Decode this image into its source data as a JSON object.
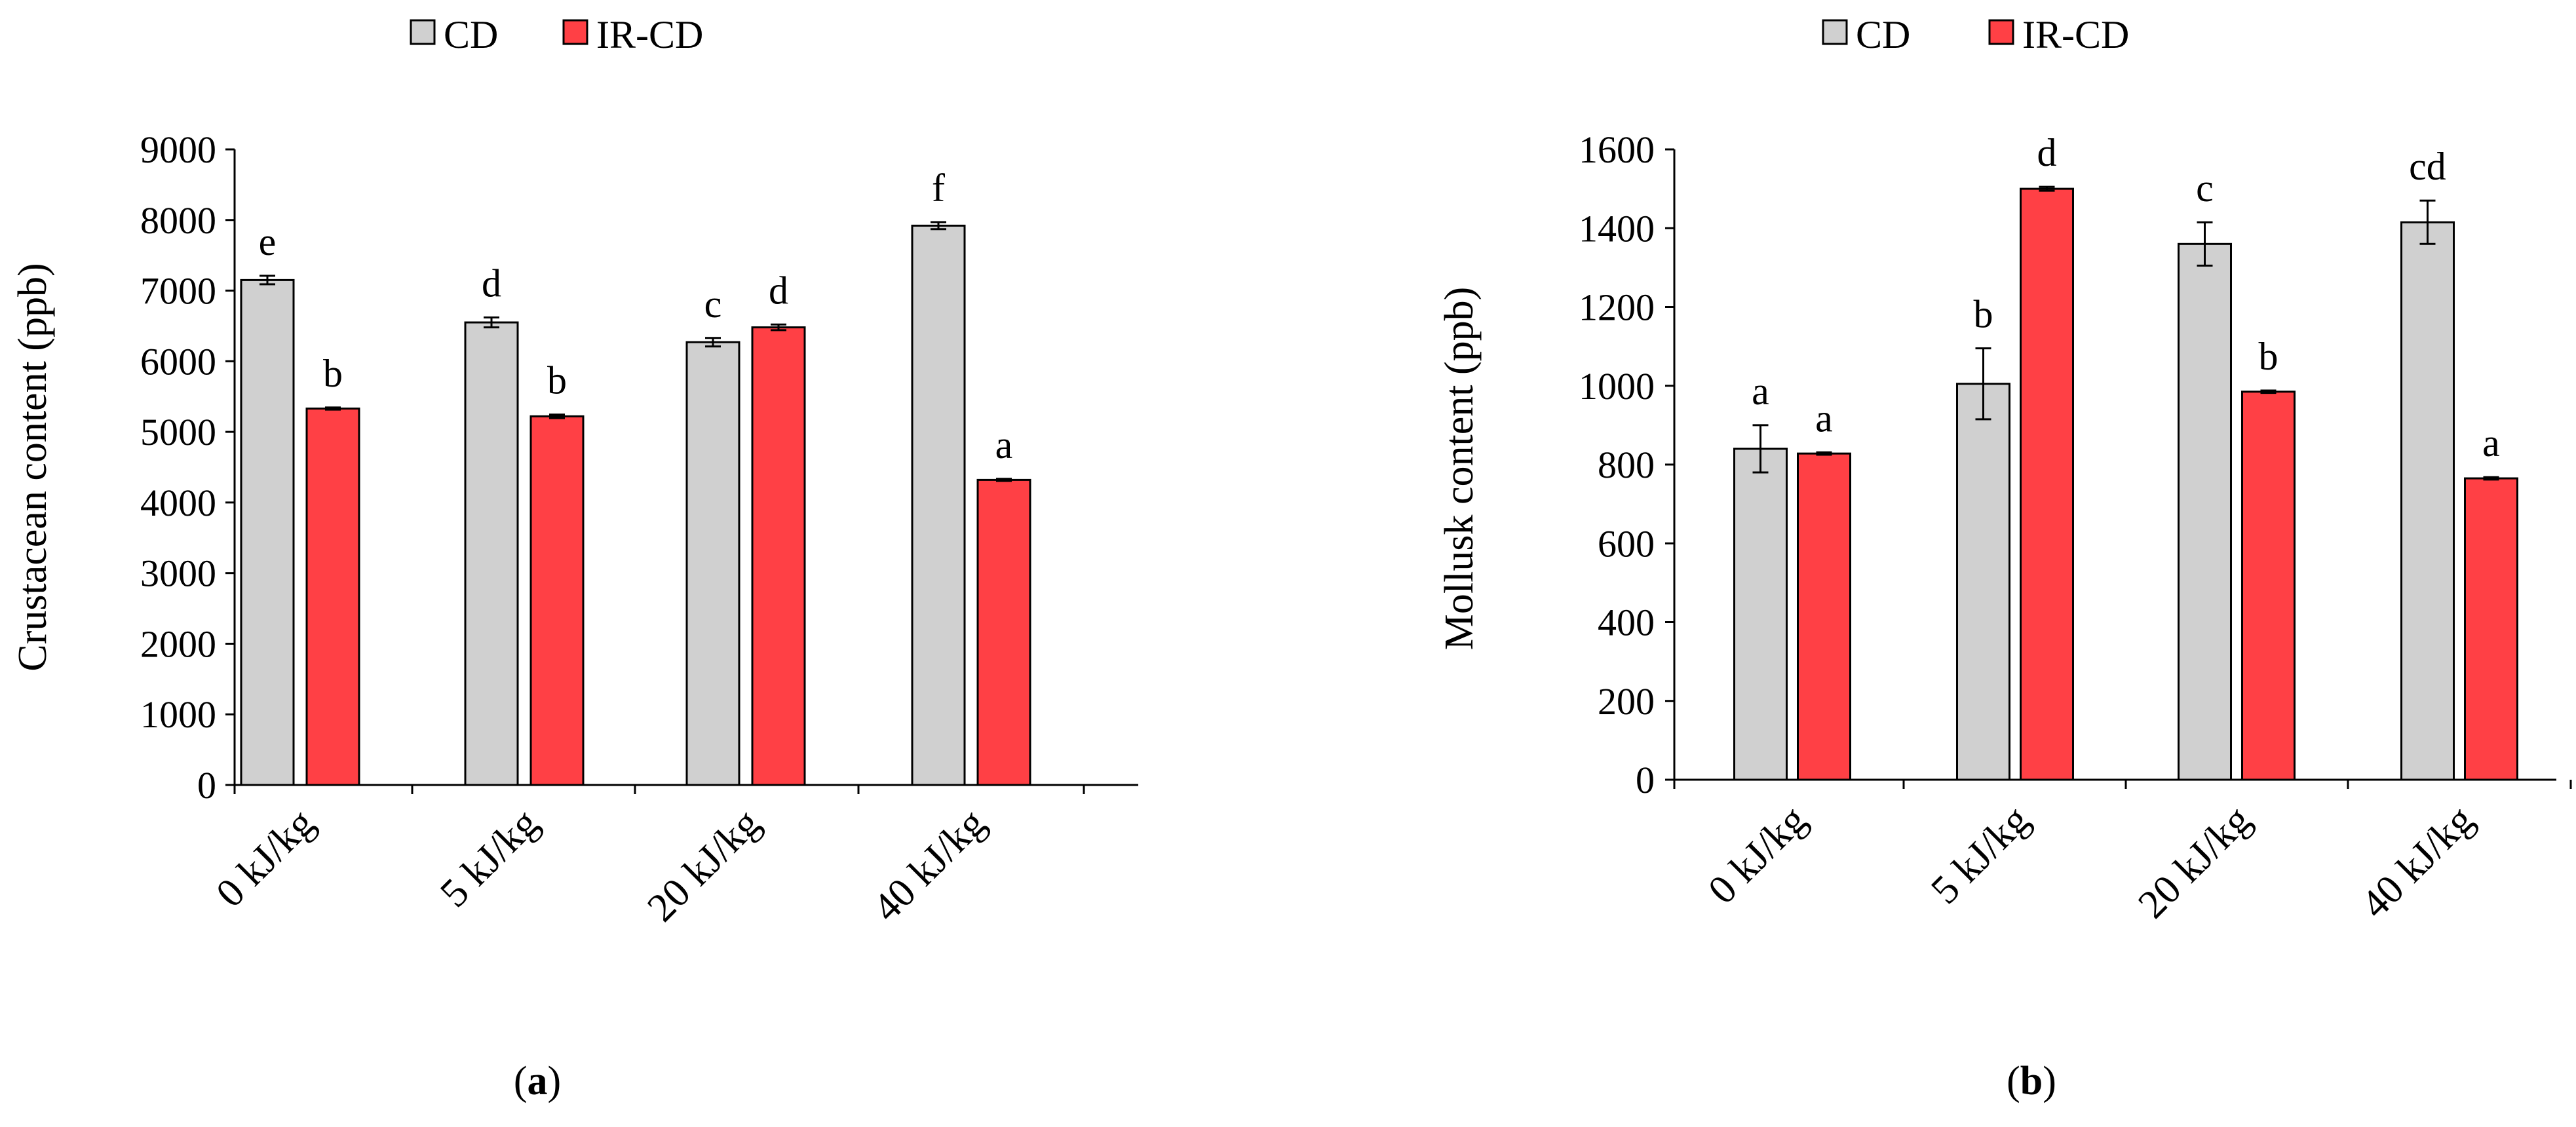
{
  "chart_data": [
    {
      "type": "bar",
      "panel_label": "a",
      "ylabel": "Crustacean content (ppb)",
      "categories": [
        "0 kJ/kg",
        "5 kJ/kg",
        "20 kJ/kg",
        "40 kJ/kg"
      ],
      "ylim": [
        0,
        9000
      ],
      "ytick_step": 1000,
      "yticks": [
        "0",
        "1000",
        "2000",
        "3000",
        "4000",
        "5000",
        "6000",
        "7000",
        "8000",
        "9000"
      ],
      "grid": false,
      "legend": "top-center",
      "series": [
        {
          "name": "CD",
          "color": "#d0d0d0",
          "values": [
            7150,
            6550,
            6270,
            7920
          ],
          "errors": [
            60,
            70,
            60,
            50
          ],
          "letters": [
            "e",
            "d",
            "c",
            "f"
          ]
        },
        {
          "name": "IR-CD",
          "color": "#ff4045",
          "values": [
            5330,
            5220,
            6480,
            4320
          ],
          "errors": [
            15,
            25,
            40,
            15
          ],
          "letters": [
            "b",
            "b",
            "d",
            "a"
          ]
        }
      ]
    },
    {
      "type": "bar",
      "panel_label": "b",
      "ylabel": "Mollusk content (ppb)",
      "categories": [
        "0 kJ/kg",
        "5 kJ/kg",
        "20 kJ/kg",
        "40 kJ/kg"
      ],
      "ylim": [
        0,
        1600
      ],
      "ytick_step": 200,
      "yticks": [
        "0",
        "200",
        "400",
        "600",
        "800",
        "1000",
        "1200",
        "1400",
        "1600"
      ],
      "grid": false,
      "legend": "top-center",
      "series": [
        {
          "name": "CD",
          "color": "#d0d0d0",
          "values": [
            840,
            1005,
            1360,
            1415
          ],
          "errors": [
            60,
            90,
            55,
            55
          ],
          "letters": [
            "a",
            "b",
            "c",
            "cd"
          ]
        },
        {
          "name": "IR-CD",
          "color": "#ff4045",
          "values": [
            828,
            1500,
            985,
            765
          ],
          "errors": [
            3,
            5,
            3,
            3
          ],
          "letters": [
            "a",
            "d",
            "b",
            "a"
          ]
        }
      ]
    }
  ]
}
